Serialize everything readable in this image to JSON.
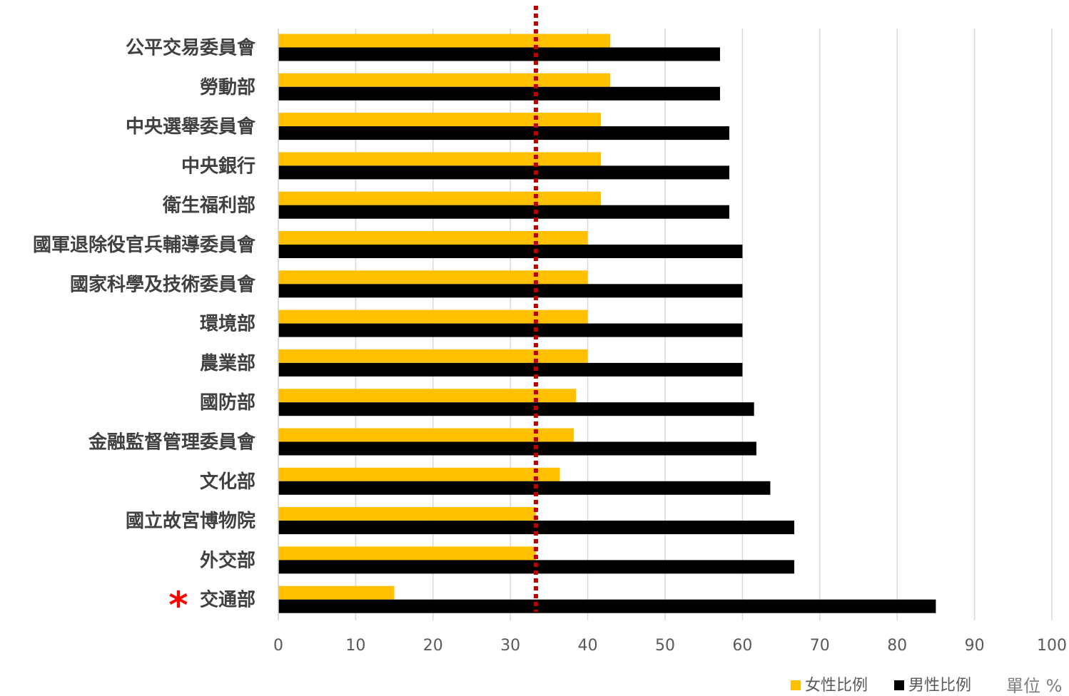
{
  "chart_data": {
    "type": "bar",
    "orientation": "horizontal",
    "categories": [
      "公平交易委員會",
      "勞動部",
      "中央選舉委員會",
      "中央銀行",
      "衛生福利部",
      "國軍退除役官兵輔導委員會",
      "國家科學及技術委員會",
      "環境部",
      "農業部",
      "國防部",
      "金融監督管理委員會",
      "文化部",
      "國立故宮博物院",
      "外交部",
      "交通部"
    ],
    "series": [
      {
        "name": "女性比例",
        "color": "#FFC000",
        "values": [
          42.9,
          42.9,
          41.7,
          41.7,
          41.7,
          40.0,
          40.0,
          40.0,
          40.0,
          38.5,
          38.2,
          36.4,
          33.3,
          33.3,
          15.0
        ]
      },
      {
        "name": "男性比例",
        "color": "#000000",
        "values": [
          57.1,
          57.1,
          58.3,
          58.3,
          58.3,
          60.0,
          60.0,
          60.0,
          60.0,
          61.5,
          61.8,
          63.6,
          66.7,
          66.7,
          85.0
        ]
      }
    ],
    "x_ticks": [
      "0",
      "10",
      "20",
      "30",
      "40",
      "50",
      "60",
      "70",
      "80",
      "90",
      "100"
    ],
    "xlim": [
      0,
      100
    ],
    "grid": true,
    "reference_line": {
      "value": 33.3,
      "color": "#C00000",
      "style": "dotted"
    },
    "highlight": {
      "category": "交通部",
      "marker": "*",
      "color": "#FF0000"
    },
    "legend_position": "bottom-right",
    "unit_label": "單位 %"
  }
}
